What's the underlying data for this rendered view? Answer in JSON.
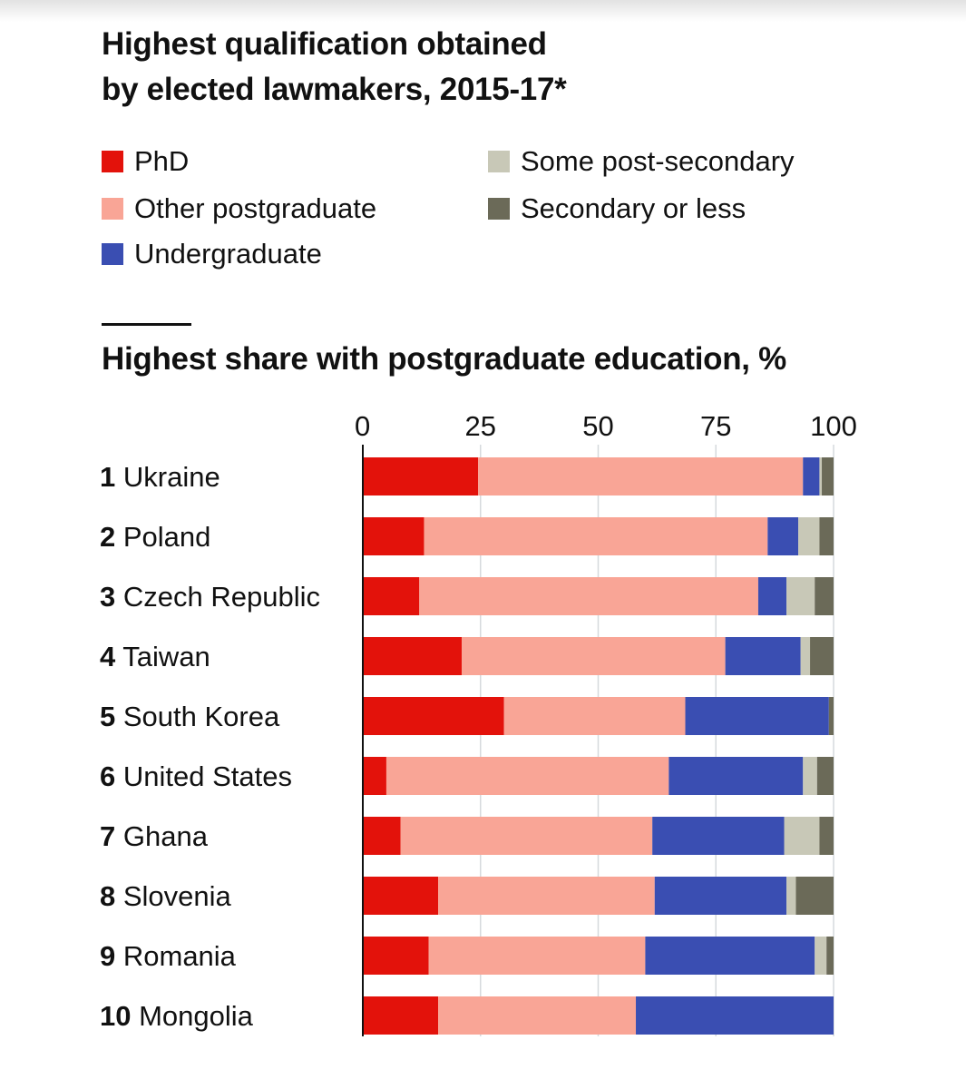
{
  "title": {
    "line1": "Highest qualification obtained",
    "line2": "by elected lawmakers, 2015-17*"
  },
  "subtitle": "Highest share with postgraduate education, %",
  "legend": [
    {
      "label": "PhD",
      "color": "#e3120b"
    },
    {
      "label": "Other postgraduate",
      "color": "#f9a596"
    },
    {
      "label": "Undergraduate",
      "color": "#3a4eb2"
    },
    {
      "label": "Some post-secondary",
      "color": "#c8c8b7"
    },
    {
      "label": "Secondary or less",
      "color": "#6b6a58"
    }
  ],
  "chart_data": {
    "type": "bar",
    "orientation": "horizontal",
    "stacked": true,
    "title": "Highest share with postgraduate education, %",
    "xlim": [
      0,
      100
    ],
    "xticks": [
      "0",
      "25",
      "50",
      "75",
      "100"
    ],
    "grid": true,
    "categories": [
      {
        "rank": "1",
        "name": "Ukraine"
      },
      {
        "rank": "2",
        "name": "Poland"
      },
      {
        "rank": "3",
        "name": "Czech Republic"
      },
      {
        "rank": "4",
        "name": "Taiwan"
      },
      {
        "rank": "5",
        "name": "South Korea"
      },
      {
        "rank": "6",
        "name": "United States"
      },
      {
        "rank": "7",
        "name": "Ghana"
      },
      {
        "rank": "8",
        "name": "Slovenia"
      },
      {
        "rank": "9",
        "name": "Romania"
      },
      {
        "rank": "10",
        "name": "Mongolia"
      }
    ],
    "series": [
      {
        "name": "PhD",
        "color": "#e3120b",
        "values": [
          24.5,
          13,
          12,
          21,
          30,
          5,
          8,
          16,
          14,
          16
        ]
      },
      {
        "name": "Other postgraduate",
        "color": "#f9a596",
        "values": [
          69,
          73,
          72,
          56,
          38.5,
          60,
          53.5,
          46,
          46,
          42
        ]
      },
      {
        "name": "Undergraduate",
        "color": "#3a4eb2",
        "values": [
          3.5,
          6.5,
          6,
          16,
          30.5,
          28.5,
          28,
          28,
          36,
          42
        ]
      },
      {
        "name": "Some post-secondary",
        "color": "#c8c8b7",
        "values": [
          0.5,
          4.5,
          6,
          2,
          0,
          3,
          7.5,
          2,
          2.5,
          0
        ]
      },
      {
        "name": "Secondary or less",
        "color": "#6b6a58",
        "values": [
          2.5,
          3,
          4,
          5,
          1,
          3.5,
          3,
          8,
          1.5,
          0
        ]
      }
    ]
  }
}
